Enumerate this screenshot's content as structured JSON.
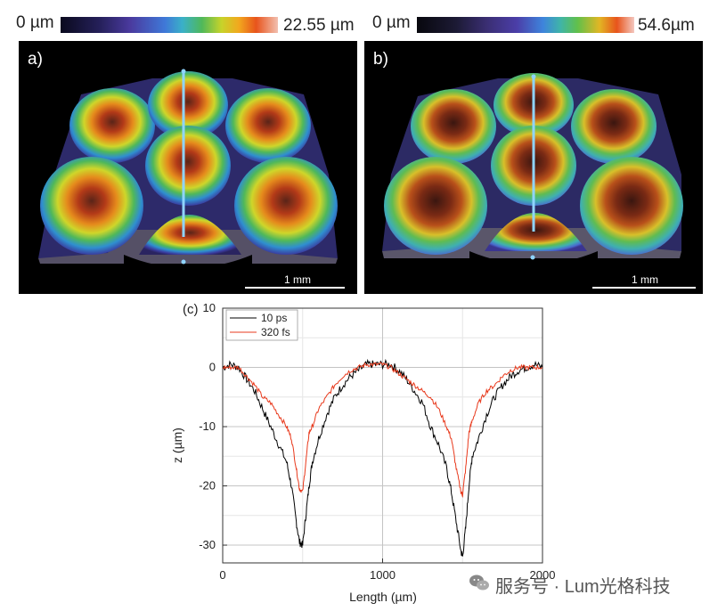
{
  "colorbar_a": {
    "min_label": "0 µm",
    "max_label": "22.55 µm"
  },
  "colorbar_b": {
    "min_label": "0 µm",
    "max_label": "54.6µm"
  },
  "panel_a": {
    "letter": "a)",
    "scale_label": "1 mm"
  },
  "panel_b": {
    "letter": "b)",
    "scale_label": "1 mm"
  },
  "chart_data": {
    "type": "line",
    "panel_label": "(c)",
    "title": "",
    "xlabel": "Length (µm)",
    "ylabel": "z (µm)",
    "xlim": [
      0,
      2000
    ],
    "ylim": [
      -33,
      10
    ],
    "xticks": [
      0,
      1000,
      2000
    ],
    "yticks": [
      10,
      0,
      -10,
      -20,
      -30
    ],
    "grid": true,
    "legend_position": "top-left",
    "series": [
      {
        "name": "10 ps",
        "color": "#000000",
        "x": [
          0,
          50,
          100,
          150,
          200,
          250,
          300,
          350,
          400,
          430,
          460,
          480,
          500,
          520,
          540,
          560,
          600,
          650,
          700,
          750,
          800,
          850,
          900,
          950,
          1000,
          1050,
          1100,
          1150,
          1200,
          1250,
          1300,
          1350,
          1400,
          1430,
          1460,
          1490,
          1500,
          1520,
          1540,
          1560,
          1600,
          1650,
          1700,
          1750,
          1800,
          1850,
          1900,
          1950,
          2000
        ],
        "y": [
          0,
          0.5,
          0,
          -2,
          -4,
          -7,
          -10,
          -13,
          -16,
          -20,
          -26,
          -29.5,
          -30,
          -25,
          -20,
          -16,
          -12,
          -8,
          -5,
          -3,
          -1.5,
          -0.5,
          0.5,
          0.5,
          0.5,
          0.5,
          -0.5,
          -2,
          -4,
          -6,
          -10,
          -13,
          -17,
          -21,
          -26,
          -31,
          -32,
          -27,
          -20,
          -15,
          -12,
          -8,
          -5,
          -3,
          -1.5,
          -0.5,
          0,
          0.5,
          0
        ]
      },
      {
        "name": "320 fs",
        "color": "#e8391c",
        "x": [
          0,
          50,
          100,
          150,
          200,
          250,
          300,
          350,
          400,
          430,
          460,
          480,
          500,
          520,
          540,
          560,
          600,
          650,
          700,
          750,
          800,
          850,
          900,
          950,
          1000,
          1050,
          1100,
          1150,
          1200,
          1250,
          1300,
          1350,
          1400,
          1430,
          1460,
          1490,
          1500,
          1520,
          1540,
          1560,
          1600,
          1650,
          1700,
          1750,
          1800,
          1850,
          1900,
          1950,
          2000
        ],
        "y": [
          0,
          0,
          0,
          -1.5,
          -3,
          -5,
          -6,
          -8,
          -10,
          -12,
          -17,
          -20.5,
          -21,
          -16,
          -11,
          -10,
          -7,
          -5,
          -3,
          -1.5,
          -0.5,
          0,
          0.5,
          0.5,
          0.5,
          0,
          -1,
          -2,
          -3,
          -4,
          -5,
          -7,
          -10,
          -12,
          -17,
          -21,
          -21.5,
          -17,
          -11,
          -9,
          -6,
          -4,
          -3,
          -1.5,
          -0.5,
          0,
          0,
          0,
          0
        ]
      }
    ]
  },
  "watermark": {
    "text": "服务号 · Lum光格科技",
    "icon": "wechat-icon"
  }
}
